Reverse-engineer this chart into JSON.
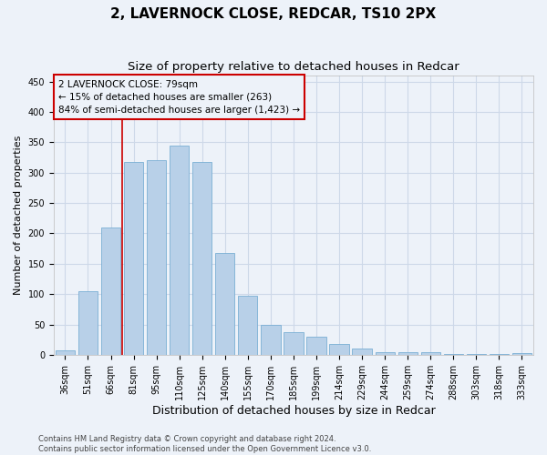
{
  "title": "2, LAVERNOCK CLOSE, REDCAR, TS10 2PX",
  "subtitle": "Size of property relative to detached houses in Redcar",
  "xlabel": "Distribution of detached houses by size in Redcar",
  "ylabel": "Number of detached properties",
  "categories": [
    "36sqm",
    "51sqm",
    "66sqm",
    "81sqm",
    "95sqm",
    "110sqm",
    "125sqm",
    "140sqm",
    "155sqm",
    "170sqm",
    "185sqm",
    "199sqm",
    "214sqm",
    "229sqm",
    "244sqm",
    "259sqm",
    "274sqm",
    "288sqm",
    "303sqm",
    "318sqm",
    "333sqm"
  ],
  "values": [
    7,
    105,
    210,
    317,
    320,
    345,
    318,
    167,
    97,
    50,
    37,
    30,
    18,
    10,
    5,
    5,
    4,
    1,
    1,
    1,
    3
  ],
  "bar_color": "#b8d0e8",
  "bar_edge_color": "#7aafd4",
  "annotation_text": "2 LAVERNOCK CLOSE: 79sqm\n← 15% of detached houses are smaller (263)\n84% of semi-detached houses are larger (1,423) →",
  "annotation_box_color": "#cc0000",
  "vline_color": "#cc0000",
  "grid_color": "#cdd8e8",
  "background_color": "#edf2f9",
  "footer_text": "Contains HM Land Registry data © Crown copyright and database right 2024.\nContains public sector information licensed under the Open Government Licence v3.0.",
  "ylim": [
    0,
    460
  ],
  "yticks": [
    0,
    50,
    100,
    150,
    200,
    250,
    300,
    350,
    400,
    450
  ],
  "vline_x": 2.5,
  "title_fontsize": 11,
  "subtitle_fontsize": 9.5,
  "xlabel_fontsize": 9,
  "ylabel_fontsize": 8,
  "tick_fontsize": 7,
  "annotation_fontsize": 7.5,
  "footer_fontsize": 6
}
